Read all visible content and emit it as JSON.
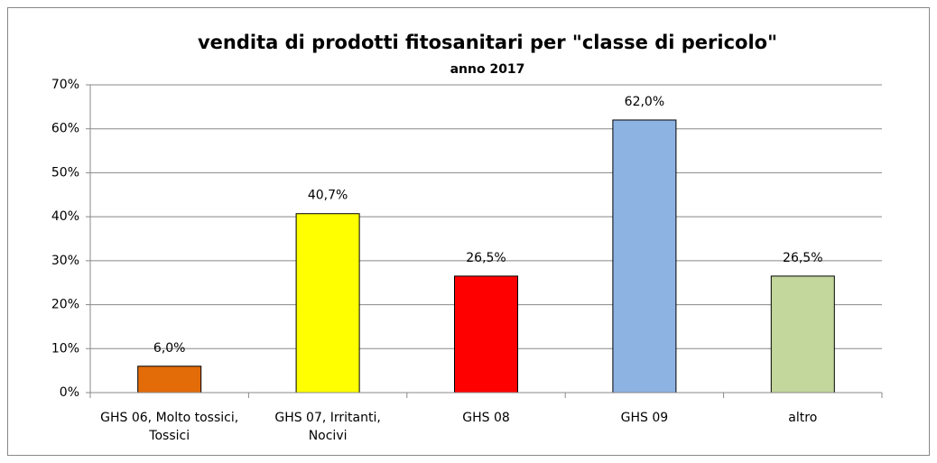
{
  "chart_data": {
    "type": "bar",
    "title": "vendita di prodotti fitosanitari per \"classe di pericolo\"",
    "subtitle": "anno 2017",
    "categories": [
      "GHS 06, Molto tossici, Tossici",
      "GHS 07, Irritanti, Nocivi",
      "GHS 08",
      "GHS 09",
      "altro"
    ],
    "values": [
      6.0,
      40.7,
      26.5,
      62.0,
      26.5
    ],
    "value_labels": [
      "6,0%",
      "40,7%",
      "26,5%",
      "62,0%",
      "26,5%"
    ],
    "colors": [
      "#e36c09",
      "#ffff00",
      "#ff0000",
      "#8db3e2",
      "#c3d69b"
    ],
    "ylim": [
      0,
      70
    ],
    "yticks": [
      {
        "value": 0,
        "label": "0%"
      },
      {
        "value": 10,
        "label": "10%"
      },
      {
        "value": 20,
        "label": "20%"
      },
      {
        "value": 30,
        "label": "30%"
      },
      {
        "value": 40,
        "label": "40%"
      },
      {
        "value": 50,
        "label": "50%"
      },
      {
        "value": 60,
        "label": "60%"
      },
      {
        "value": 70,
        "label": "70%"
      }
    ],
    "grid": true
  }
}
